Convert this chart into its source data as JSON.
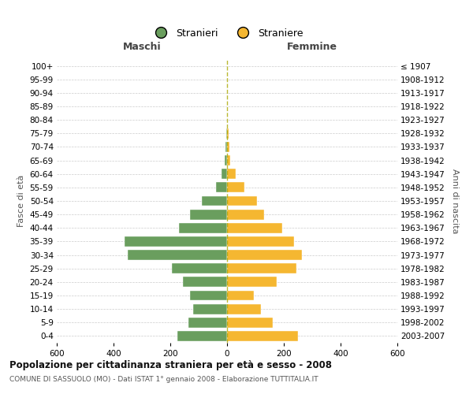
{
  "age_groups": [
    "0-4",
    "5-9",
    "10-14",
    "15-19",
    "20-24",
    "25-29",
    "30-34",
    "35-39",
    "40-44",
    "45-49",
    "50-54",
    "55-59",
    "60-64",
    "65-69",
    "70-74",
    "75-79",
    "80-84",
    "85-89",
    "90-94",
    "95-99",
    "100+"
  ],
  "birth_years": [
    "2003-2007",
    "1998-2002",
    "1993-1997",
    "1988-1992",
    "1983-1987",
    "1978-1982",
    "1973-1977",
    "1968-1972",
    "1963-1967",
    "1958-1962",
    "1953-1957",
    "1948-1952",
    "1943-1947",
    "1938-1942",
    "1933-1937",
    "1928-1932",
    "1923-1927",
    "1918-1922",
    "1913-1917",
    "1908-1912",
    "≤ 1907"
  ],
  "maschi": [
    175,
    135,
    120,
    130,
    155,
    195,
    350,
    360,
    170,
    130,
    90,
    40,
    20,
    8,
    5,
    4,
    0,
    0,
    0,
    0,
    0
  ],
  "femmine": [
    250,
    160,
    120,
    95,
    175,
    245,
    265,
    235,
    195,
    130,
    105,
    60,
    30,
    10,
    7,
    5,
    0,
    0,
    0,
    0,
    0
  ],
  "male_color": "#6a9e5e",
  "female_color": "#f5b731",
  "dashed_color": "#aaa800",
  "grid_color": "#cccccc",
  "title_main": "Popolazione per cittadinanza straniera per età e sesso - 2008",
  "title_sub": "COMUNE DI SASSUOLO (MO) - Dati ISTAT 1° gennaio 2008 - Elaborazione TUTTITALIA.IT",
  "label_maschi": "Maschi",
  "label_femmine": "Femmine",
  "ylabel_left": "Fasce di età",
  "ylabel_right": "Anni di nascita",
  "legend_male": "Stranieri",
  "legend_female": "Straniere",
  "xlim": 600
}
